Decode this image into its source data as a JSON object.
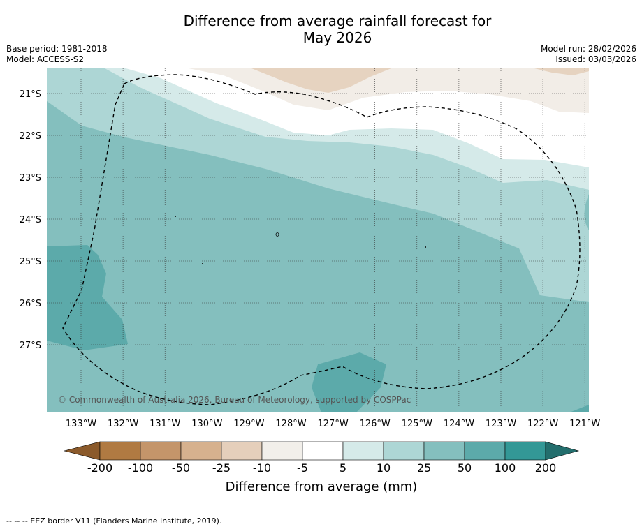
{
  "title_line1": "Difference from average rainfall forecast for",
  "title_line2": "May 2026",
  "base_period": "Base period: 1981-2018",
  "model": "Model: ACCESS-S2",
  "model_run": "Model run: 28/02/2026",
  "issued": "Issued: 03/03/2026",
  "copyright": "© Commonwealth of Australia 2026, Bureau of Meteorology, supported by COSPPac",
  "lat_labels": [
    "21°S",
    "22°S",
    "23°S",
    "24°S",
    "25°S",
    "26°S",
    "27°S"
  ],
  "lon_labels": [
    "133°W",
    "132°W",
    "131°W",
    "130°W",
    "129°W",
    "128°W",
    "127°W",
    "126°W",
    "125°W",
    "124°W",
    "123°W",
    "122°W",
    "121°W"
  ],
  "colorbar": {
    "ticks": [
      "-200",
      "-100",
      "-50",
      "-25",
      "-10",
      "-5",
      "5",
      "10",
      "25",
      "50",
      "100",
      "200"
    ],
    "colors": [
      "#8b5a2b",
      "#b07a42",
      "#c4956a",
      "#d6b18e",
      "#e5cfbb",
      "#f2efea",
      "#ffffff",
      "#d5eae9",
      "#add6d5",
      "#84bfbe",
      "#5caaaa",
      "#339896",
      "#236e6d"
    ],
    "title": "Difference from average (mm)"
  },
  "map_fills": {
    "band_light_tan": "#f2ede7",
    "band_tan": "#e6d3c0",
    "band_white": "#ffffff",
    "band_10": "#d5eae9",
    "band_25": "#add6d5",
    "band_50": "#84bfbe",
    "band_100": "#5caaaa"
  },
  "legend_note": "--  --  -- EEZ border V11 (Flanders Marine Institute, 2019)."
}
